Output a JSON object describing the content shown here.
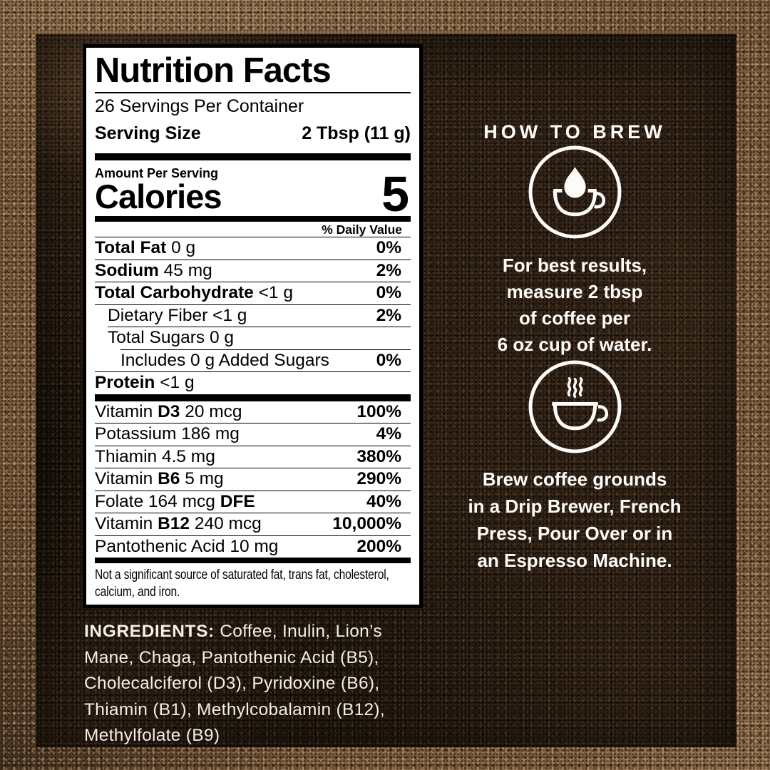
{
  "colors": {
    "background_dark": "#2f2115",
    "background_frame": "#7a5a3c",
    "label_background": "#ffffff",
    "label_text": "#000000",
    "light_text": "#f4eee4"
  },
  "nutrition_label": {
    "title": "Nutrition Facts",
    "servings_per_container": "26 Servings Per Container",
    "serving_size_label": "Serving Size",
    "serving_size_value": "2 Tbsp (11 g)",
    "amount_per_serving": "Amount Per Serving",
    "calories_label": "Calories",
    "calories_value": "5",
    "daily_value_header": "% Daily Value",
    "nutrient_rows": [
      {
        "segments": [
          [
            "Total Fat",
            1
          ],
          [
            " 0 g",
            0
          ]
        ],
        "pct": "0%",
        "indent": 0,
        "line_indent": 0
      },
      {
        "segments": [
          [
            "Sodium",
            1
          ],
          [
            " 45 mg",
            0
          ]
        ],
        "pct": "2%",
        "indent": 0,
        "line_indent": 0
      },
      {
        "segments": [
          [
            "Total Carbohydrate",
            1
          ],
          [
            " <1 g",
            0
          ]
        ],
        "pct": "0%",
        "indent": 0,
        "line_indent": 0
      },
      {
        "segments": [
          [
            "Dietary Fiber <1 g",
            0
          ]
        ],
        "pct": "2%",
        "indent": 1,
        "line_indent": 0
      },
      {
        "segments": [
          [
            "Total Sugars 0 g",
            0
          ]
        ],
        "pct": "",
        "indent": 1,
        "line_indent": 1
      },
      {
        "segments": [
          [
            "Includes 0 g Added Sugars",
            0
          ]
        ],
        "pct": "0%",
        "indent": 2,
        "line_indent": 2
      },
      {
        "segments": [
          [
            "Protein",
            1
          ],
          [
            " <1 g",
            0
          ]
        ],
        "pct": "",
        "indent": 0,
        "line_indent": 0
      }
    ],
    "vitamin_rows": [
      {
        "segments": [
          [
            "Vitamin ",
            0
          ],
          [
            "D3",
            1
          ],
          [
            " 20 mcg",
            0
          ]
        ],
        "pct": "100%",
        "indent": 0,
        "line_indent": 0
      },
      {
        "segments": [
          [
            "Potassium 186 mg",
            0
          ]
        ],
        "pct": "4%",
        "indent": 0,
        "line_indent": 0
      },
      {
        "segments": [
          [
            "Thiamin 4.5 mg",
            0
          ]
        ],
        "pct": "380%",
        "indent": 0,
        "line_indent": 0
      },
      {
        "segments": [
          [
            "Vitamin ",
            0
          ],
          [
            "B6",
            1
          ],
          [
            " 5 mg",
            0
          ]
        ],
        "pct": "290%",
        "indent": 0,
        "line_indent": 0
      },
      {
        "segments": [
          [
            "Folate 164 mcg ",
            0
          ],
          [
            "DFE",
            1
          ]
        ],
        "pct": "40%",
        "indent": 0,
        "line_indent": 0
      },
      {
        "segments": [
          [
            "Vitamin ",
            0
          ],
          [
            "B12",
            1
          ],
          [
            " 240 mcg",
            0
          ]
        ],
        "pct": "10,000%",
        "indent": 0,
        "line_indent": 0
      },
      {
        "segments": [
          [
            "Pantothenic Acid 10 mg",
            0
          ]
        ],
        "pct": "200%",
        "indent": 0,
        "line_indent": 0
      }
    ],
    "footnote_lines": [
      "Not a significant source of saturated fat, trans fat, cholesterol,",
      "calcium, and iron."
    ]
  },
  "ingredients": {
    "label": "INGREDIENTS:",
    "lines": [
      "Coffee, Inulin, Lion’s",
      "Mane, Chaga, Pantothenic Acid (B5),",
      "Cholecalciferol (D3), Pyridoxine (B6),",
      "Thiamin (B1), Methylcobalamin (B12),",
      "Methylfolate (B9)"
    ]
  },
  "brew_section": {
    "heading": "HOW TO BREW",
    "steps": [
      {
        "icon": "drip-cup-icon",
        "lines": [
          "For best results,",
          "measure 2 tbsp",
          "of coffee per",
          "6 oz cup of water."
        ]
      },
      {
        "icon": "steaming-cup-icon",
        "lines": [
          "Brew coffee grounds",
          "in a Drip Brewer, French",
          "Press, Pour Over or in",
          "an Espresso Machine."
        ]
      }
    ]
  }
}
